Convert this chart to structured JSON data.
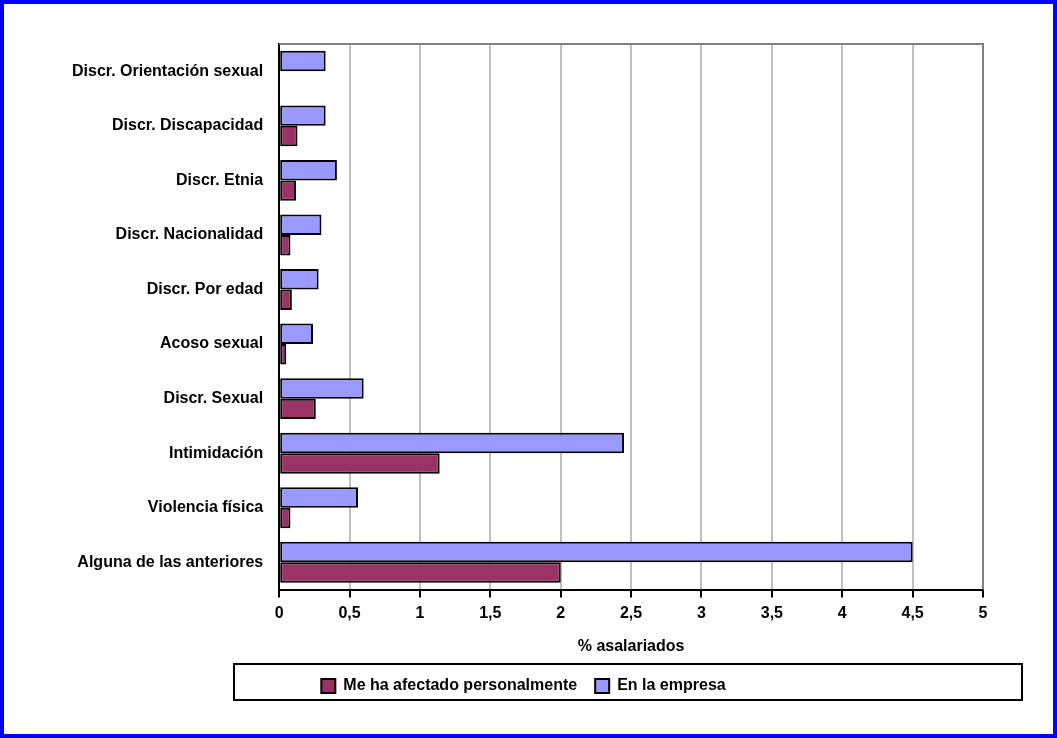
{
  "chart_data": {
    "type": "bar",
    "orientation": "horizontal",
    "xlabel": "% asalariados",
    "categories": [
      "Discr. Orientación sexual",
      "Discr. Discapacidad",
      "Discr. Etnia",
      "Discr. Nacionalidad",
      "Discr. Por edad",
      "Acoso sexual",
      "Discr. Sexual",
      "Intimidación",
      "Violencia física",
      "Alguna de las anteriores"
    ],
    "series": [
      {
        "name": "En la empresa",
        "color": "#9999ff",
        "values": [
          0.33,
          0.33,
          0.41,
          0.3,
          0.28,
          0.24,
          0.6,
          2.45,
          0.56,
          4.5
        ]
      },
      {
        "name": "Me ha afectado personalmente",
        "color": "#993366",
        "values": [
          null,
          0.13,
          0.12,
          0.08,
          0.09,
          0.05,
          0.26,
          1.14,
          0.08,
          2.0
        ]
      }
    ],
    "xlim": [
      0,
      5
    ],
    "xticks": [
      0,
      {
        "value": 0.5,
        "label": "0,5"
      },
      1,
      {
        "value": 1.5,
        "label": "1,5"
      },
      2,
      {
        "value": 2.5,
        "label": "2,5"
      },
      3,
      {
        "value": 3.5,
        "label": "3,5"
      },
      4,
      {
        "value": 4.5,
        "label": "4,5"
      },
      5
    ],
    "grid": "x",
    "legend": "bottom"
  }
}
